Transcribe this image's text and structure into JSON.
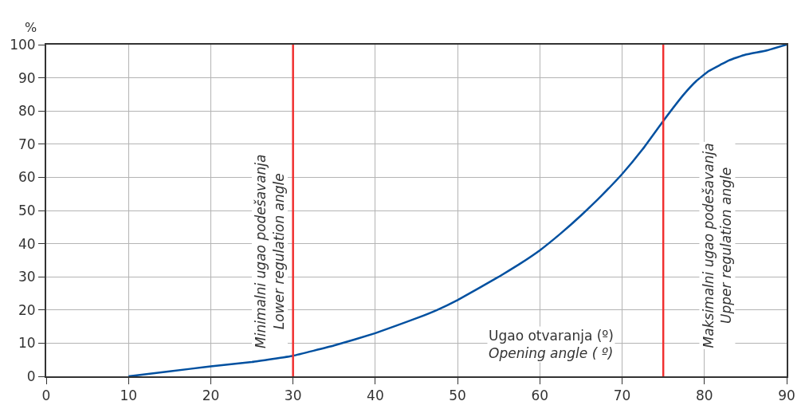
{
  "chart_data": {
    "type": "line",
    "xlabel": "Ugao otvaranja (º)\nOpening angle ( º)",
    "ylabel": "%",
    "x": [
      10,
      15,
      20,
      25,
      30,
      35,
      40,
      45,
      47.5,
      50,
      55,
      57.5,
      60,
      62.5,
      65,
      67.5,
      70,
      72.5,
      75,
      77.5,
      79,
      80.5,
      82,
      83,
      85,
      87.5,
      90
    ],
    "series": [
      {
        "color": "#0050a0",
        "values": [
          0,
          1.5,
          3,
          4.3,
          6.2,
          9.3,
          13,
          17.5,
          20,
          23,
          30,
          33.8,
          38,
          43,
          48.5,
          54.5,
          61,
          68.5,
          77,
          85,
          89,
          92,
          94,
          95.3,
          97,
          98.2,
          100
        ]
      }
    ],
    "ref_lines": [
      {
        "axis": "x",
        "value": 30,
        "label": "Minimalni ugao podešavanja\nLower regulation angle",
        "color": "#f03030"
      },
      {
        "axis": "x",
        "value": 75,
        "label": "Maksimalni ugao podešavanja\nUpper regulation angle",
        "color": "#f03030"
      }
    ],
    "xlim": [
      0,
      90
    ],
    "xticks": [
      0,
      10,
      20,
      30,
      40,
      50,
      60,
      70,
      80,
      90
    ],
    "ylim": [
      0,
      100
    ],
    "yticks": [
      0,
      10,
      20,
      30,
      40,
      50,
      60,
      70,
      80,
      90,
      100
    ],
    "grid": true,
    "marker": "none",
    "line_style": "solid"
  }
}
